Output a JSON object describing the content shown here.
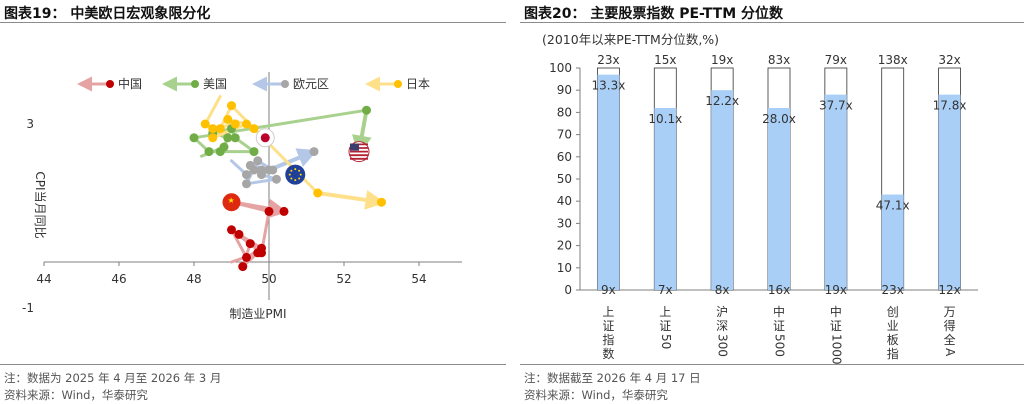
{
  "left": {
    "title": "图表19： 中美欧日宏观象限分化",
    "note": "注：数据为 2025 年 4 月至 2026 年 3 月",
    "source": "资料来源：Wind，华泰研究"
  },
  "right": {
    "title": "图表20： 主要股票指数 PE-TTM 分位数",
    "note": "注：数据截至 2026 年 4 月 17 日",
    "source": "资料来源：Wind，华泰研究"
  },
  "chart_data": [
    {
      "type": "scatter",
      "title": "中美欧日宏观象限分化",
      "xlabel": "制造业PMI",
      "ylabel": "CPI当月同比",
      "xlim": [
        44,
        55
      ],
      "ylim": [
        -1,
        4.4
      ],
      "xticks": [
        "44",
        "46",
        "48",
        "50",
        "52",
        "54"
      ],
      "yticks": [
        "3",
        "-1"
      ],
      "legend_position": "top",
      "series": [
        {
          "name": "中国",
          "color": "#c00000",
          "flag": "china-flag",
          "x": [
            49.0,
            49.7,
            49.3,
            49.5,
            49.2,
            49.8,
            49.4,
            49.0,
            49.8,
            50.0,
            49.0,
            50.4
          ],
          "y": [
            0.0,
            0.2,
            -0.1,
            0.4,
            0.6,
            0.3,
            0.1,
            0.7,
            0.2,
            1.1,
            1.3,
            1.1
          ]
        },
        {
          "name": "美国",
          "color": "#70ad47",
          "flag": "us-flag",
          "x": [
            48.2,
            48.8,
            48.9,
            48.5,
            49.0,
            49.1,
            49.6,
            48.7,
            48.4,
            48.0,
            52.6,
            52.4
          ],
          "y": [
            2.3,
            2.5,
            2.7,
            2.8,
            2.9,
            2.7,
            2.4,
            2.4,
            2.4,
            2.7,
            3.3,
            2.4
          ]
        },
        {
          "name": "欧元区",
          "color": "#a6a6a6",
          "flag": "eu-flag",
          "x": [
            49.0,
            49.4,
            49.6,
            49.8,
            49.5,
            50.1,
            49.7,
            49.4,
            50.2,
            49.8,
            50.0,
            51.2
          ],
          "y": [
            2.2,
            1.9,
            2.0,
            2.0,
            2.1,
            2.0,
            2.2,
            1.7,
            1.8,
            1.9,
            2.0,
            2.4
          ]
        },
        {
          "name": "日本",
          "color": "#ffc000",
          "flag": "japan-flag",
          "x": [
            48.7,
            48.3,
            48.5,
            49.1,
            48.9,
            49.4,
            48.5,
            48.7,
            49.0,
            49.6,
            51.3,
            53.0
          ],
          "y": [
            3.6,
            3.0,
            2.9,
            3.0,
            3.1,
            3.0,
            2.7,
            2.9,
            3.4,
            2.9,
            1.5,
            1.3
          ]
        }
      ],
      "legend": [
        "中国",
        "美国",
        "欧元区",
        "日本"
      ]
    },
    {
      "type": "bar",
      "title": "主要股票指数 PE-TTM 分位数",
      "subtitle": "(2010年以来PE-TTM分位数,%)",
      "categories": [
        "上证指数",
        "上证50",
        "沪深300",
        "中证500",
        "中证1000",
        "创业板指",
        "万得全A"
      ],
      "values": [
        97,
        82,
        90,
        82,
        88,
        43,
        88
      ],
      "top_labels": [
        "23x",
        "15x",
        "19x",
        "83x",
        "79x",
        "138x",
        "32x"
      ],
      "value_labels": [
        "13.3x",
        "10.1x",
        "12.2x",
        "28.0x",
        "37.7x",
        "47.1x",
        "17.8x"
      ],
      "bottom_labels": [
        "9x",
        "7x",
        "8x",
        "16x",
        "19x",
        "23x",
        "12x"
      ],
      "ylim": [
        0,
        100
      ],
      "yticks": [
        "0",
        "10",
        "20",
        "30",
        "40",
        "50",
        "60",
        "70",
        "80",
        "90",
        "100"
      ],
      "bar_color": "#a9cff7"
    }
  ]
}
